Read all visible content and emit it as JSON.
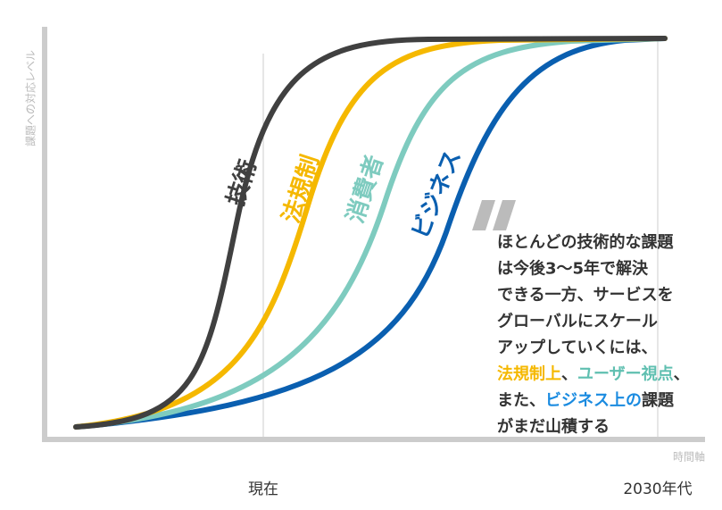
{
  "axes": {
    "y_label": "課題への対応レベル",
    "x_label": "時間軸",
    "x_marks": [
      "現在",
      "2030年代"
    ]
  },
  "curves": [
    {
      "label": "技術",
      "color": "#404040"
    },
    {
      "label": "法規制",
      "color": "#f5b800"
    },
    {
      "label": "消費者",
      "color": "#7ecbbf"
    },
    {
      "label": "ビジネス",
      "color": "#0a5fb0"
    }
  ],
  "callout": {
    "lines": [
      [
        {
          "text": "ほとんどの技術的な課題"
        }
      ],
      [
        {
          "text": "は今後3～5年で解決"
        }
      ],
      [
        {
          "text": "できる一方、サービスを"
        }
      ],
      [
        {
          "text": "グローバルにスケール"
        }
      ],
      [
        {
          "text": "アップしていくには、"
        }
      ],
      [
        {
          "text": "法規制上",
          "color": "#f5b800"
        },
        {
          "text": "、"
        },
        {
          "text": "ユーザー視点",
          "color": "#5fbfb0"
        },
        {
          "text": "、"
        }
      ],
      [
        {
          "text": "また、"
        },
        {
          "text": "ビジネス上の",
          "color": "#1a8be0"
        },
        {
          "text": "課題"
        }
      ],
      [
        {
          "text": "がまだ山積する"
        }
      ]
    ]
  }
}
